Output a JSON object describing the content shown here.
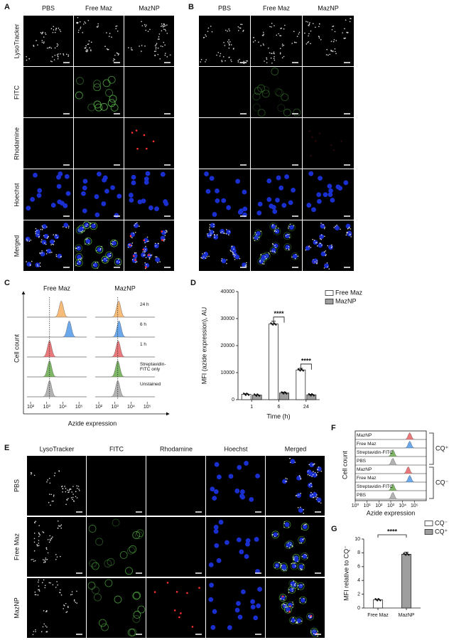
{
  "panel_labels": [
    "A",
    "B",
    "C",
    "D",
    "E",
    "F",
    "G"
  ],
  "panel_a": {
    "columns": [
      "PBS",
      "Free Maz",
      "MazNP"
    ],
    "rows": [
      "LysoTracker",
      "FITC",
      "Rhodamine",
      "Hoechst",
      "Merged"
    ]
  },
  "panel_b": {
    "columns": [
      "PBS",
      "Free Maz",
      "MazNP"
    ]
  },
  "panel_e": {
    "columns": [
      "LysoTracker",
      "FITC",
      "Rhodamine",
      "Hoechst",
      "Merged"
    ],
    "rows": [
      "PBS",
      "Free Maz",
      "MazNP"
    ]
  },
  "chart_data": [
    {
      "type": "ridgeline",
      "y_label": "Cell count",
      "x_label": "Azide expression",
      "categories": [
        "24 h",
        "6 h",
        "1 h",
        "Streptavidin-FITC only",
        "Unstained"
      ],
      "colors": [
        "#f5b46a",
        "#5b9ee9",
        "#e8686a",
        "#6fae55",
        "#aaaaaa"
      ],
      "series": [
        {
          "name": "Free Maz",
          "values": [
            8000,
            25000,
            1500,
            1500,
            1500
          ]
        },
        {
          "name": "MazNP",
          "values": [
            1700,
            1800,
            1600,
            1500,
            1500
          ]
        }
      ],
      "log_x": true,
      "xlim": [
        60,
        300000
      ],
      "xticks": [
        {
          "value": 100,
          "label": "10²"
        },
        {
          "value": 1000,
          "label": "10³"
        },
        {
          "value": 10000,
          "label": "10⁴"
        },
        {
          "value": 100000,
          "label": "10⁵"
        }
      ],
      "reference_line": 1500
    },
    {
      "type": "bar",
      "x_label": "Time (h)",
      "y_label": "MFI (azide expression), AU",
      "categories": [
        "1",
        "6",
        "24"
      ],
      "series": [
        {
          "name": "Free Maz",
          "color": "#ffffff",
          "values": [
            2000,
            28000,
            11000
          ],
          "errors": [
            200,
            1000,
            600
          ]
        },
        {
          "name": "MazNP",
          "color": "#9e9e9e",
          "values": [
            1700,
            2500,
            1800
          ],
          "errors": [
            150,
            300,
            200
          ]
        }
      ],
      "ylim": [
        0,
        40000
      ],
      "yticks": [
        0,
        10000,
        20000,
        30000,
        40000
      ],
      "annotations": [
        {
          "text": "****",
          "category": "6"
        },
        {
          "text": "****",
          "category": "24"
        }
      ]
    },
    {
      "type": "ridgeline",
      "y_label": "Cell count",
      "x_label": "Azide expression",
      "categories": [
        "MazNP",
        "Free Maz",
        "Streptavidin-FITC",
        "PBS",
        "MazNP",
        "Free Maz",
        "Streptavidin-FITC",
        "PBS"
      ],
      "colors": [
        "#e8686a",
        "#5b9ee9",
        "#6fae55",
        "#aaaaaa",
        "#e8686a",
        "#5b9ee9",
        "#6fae55",
        "#aaaaaa"
      ],
      "series": [
        {
          "values": [
            40000,
            40000,
            1500,
            1500,
            30000,
            40000,
            1500,
            1500
          ]
        }
      ],
      "groups": [
        "CQ⁺",
        "CQ⁻"
      ],
      "log_x": true,
      "xlim": [
        1,
        1000000
      ],
      "xticks": [
        {
          "value": 1,
          "label": "10⁰"
        },
        {
          "value": 10,
          "label": "10¹"
        },
        {
          "value": 100,
          "label": "10²"
        },
        {
          "value": 1000,
          "label": "10³"
        },
        {
          "value": 10000,
          "label": "10⁴"
        },
        {
          "value": 100000,
          "label": "10⁵"
        }
      ]
    },
    {
      "type": "bar",
      "y_label": "MFI relative to CQ⁻",
      "categories": [
        "Free Maz",
        "MazNP"
      ],
      "series": [
        {
          "name": "CQ⁻",
          "color": "#ffffff",
          "values": [
            1.2,
            null
          ],
          "errors": [
            0.05,
            null
          ]
        },
        {
          "name": "CQ⁺",
          "color": "#9e9e9e",
          "values": [
            null,
            7.8
          ],
          "errors": [
            null,
            0.3
          ]
        }
      ],
      "ylim": [
        0,
        10
      ],
      "yticks": [
        0,
        2,
        4,
        6,
        8,
        10
      ],
      "annotations": [
        {
          "text": "****"
        }
      ]
    }
  ]
}
